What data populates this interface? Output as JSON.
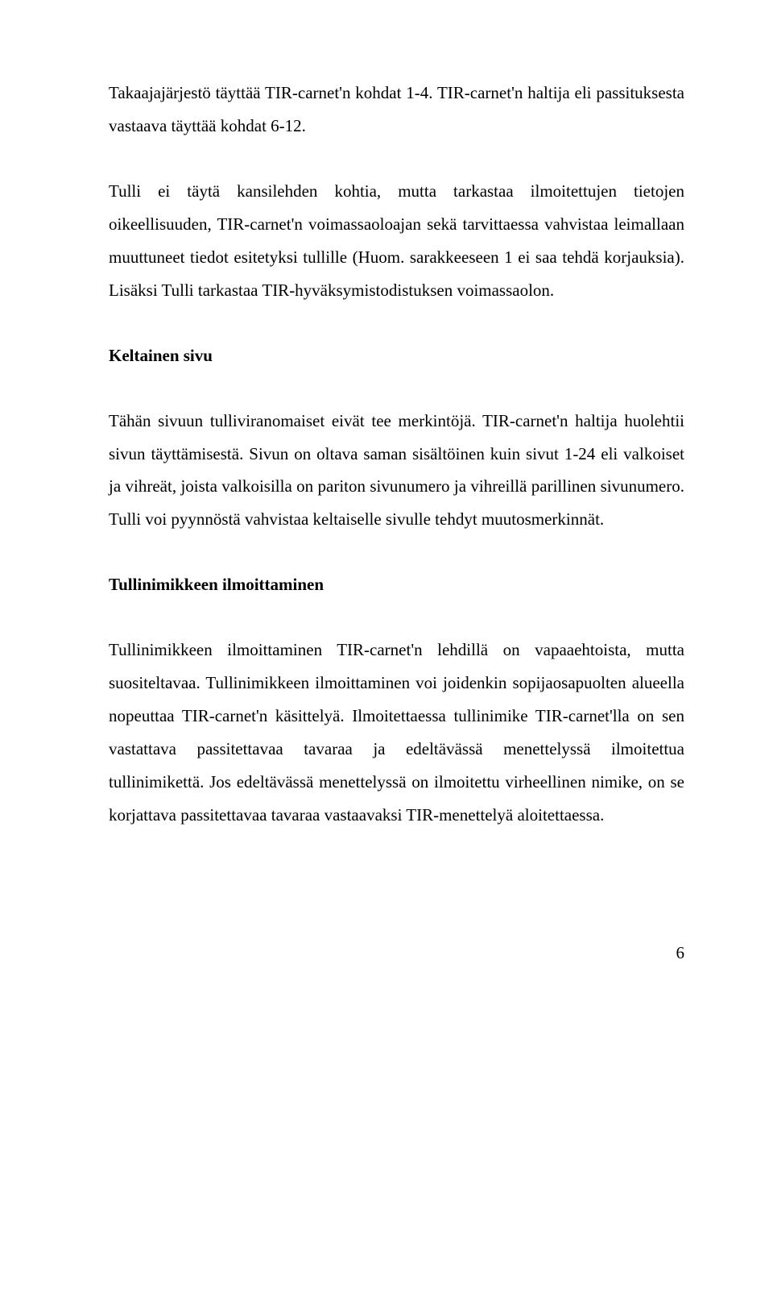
{
  "paragraphs": {
    "p1": "Takaajajärjestö täyttää TIR-carnet'n kohdat 1-4. TIR-carnet'n haltija eli passituksesta vastaava täyttää kohdat 6-12.",
    "p2": "Tulli ei täytä kansilehden kohtia, mutta tarkastaa ilmoitettujen tietojen oikeellisuuden, TIR-carnet'n voimassaoloajan sekä tarvittaessa vahvistaa leimallaan muuttuneet tiedot esitetyksi tullille (Huom. sarakkeeseen 1 ei saa tehdä korjauksia). Lisäksi Tulli tarkastaa TIR-hyväksymistodistuksen voimassaolon.",
    "h1": "Keltainen sivu",
    "p3": "Tähän sivuun tulliviranomaiset eivät tee merkintöjä. TIR-carnet'n haltija huolehtii sivun täyttämisestä. Sivun on oltava saman sisältöinen kuin sivut 1-24 eli valkoiset ja vihreät, joista valkoisilla on pariton sivunumero ja vihreillä parillinen sivunumero. Tulli voi pyynnöstä vahvistaa keltaiselle sivulle tehdyt muutosmerkinnät.",
    "h2": "Tullinimikkeen ilmoittaminen",
    "p4": "Tullinimikkeen ilmoittaminen TIR-carnet'n lehdillä on vapaaehtoista, mutta suositeltavaa. Tullinimikkeen ilmoittaminen voi joidenkin sopijaosapuolten alueella nopeuttaa TIR-carnet'n käsittelyä. Ilmoitettaessa tullinimike TIR-carnet'lla on sen vastattava passitettavaa tavaraa ja edeltävässä menettelyssä ilmoitettua tullinimikettä. Jos edeltävässä menettelyssä on ilmoitettu virheellinen nimike, on se korjattava passitettavaa tavaraa vastaavaksi TIR-menettelyä aloitettaessa."
  },
  "pageNumber": "6",
  "style": {
    "background": "#ffffff",
    "textColor": "#000000",
    "fontFamily": "Times New Roman",
    "bodyFontSize": 21,
    "lineHeight": 1.95,
    "pageWidth": 960,
    "pageHeight": 1629
  }
}
